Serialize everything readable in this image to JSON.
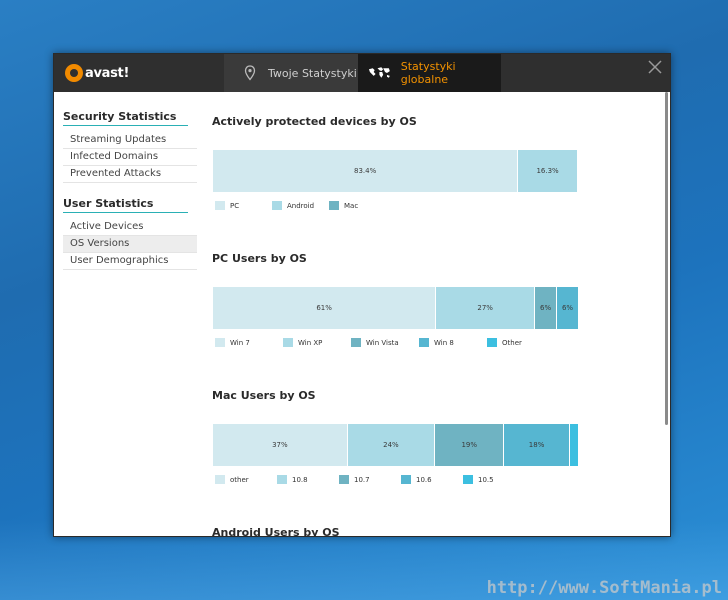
{
  "app": {
    "logo_text": "avast!",
    "tabs": [
      {
        "label": "Twoje Statystyki",
        "icon": "pin-icon"
      },
      {
        "label": "Statystyki globalne",
        "icon": "globe-icon"
      }
    ],
    "accent": "#f39200"
  },
  "sidebar": {
    "sections": [
      {
        "title": "Security Statistics",
        "items": [
          "Streaming Updates",
          "Infected Domains",
          "Prevented Attacks"
        ]
      },
      {
        "title": "User Statistics",
        "items": [
          "Active Devices",
          "OS Versions",
          "User Demographics"
        ]
      }
    ],
    "active_item": "OS Versions"
  },
  "charts": [
    {
      "title": "Actively protected devices by OS",
      "segments": [
        {
          "label": "PC",
          "value": 83.4,
          "text": "83.4%",
          "color": "#d2e9ef"
        },
        {
          "label": "Android",
          "value": 16.3,
          "text": "16.3%",
          "color": "#a9dae6"
        },
        {
          "label": "Mac",
          "value": 0.3,
          "text": "",
          "color": "#6fb3c2"
        }
      ]
    },
    {
      "title": "PC Users by OS",
      "segments": [
        {
          "label": "Win 7",
          "value": 61,
          "text": "61%",
          "color": "#d2e9ef"
        },
        {
          "label": "Win XP",
          "value": 27,
          "text": "27%",
          "color": "#a9dae6"
        },
        {
          "label": "Win Vista",
          "value": 6,
          "text": "6%",
          "color": "#6fb3c2"
        },
        {
          "label": "Win 8",
          "value": 6,
          "text": "6%",
          "color": "#56b6d1"
        },
        {
          "label": "Other",
          "value": 0,
          "text": "",
          "color": "#3cbfe0"
        }
      ]
    },
    {
      "title": "Mac Users by OS",
      "segments": [
        {
          "label": "other",
          "value": 37,
          "text": "37%",
          "color": "#d2e9ef"
        },
        {
          "label": "10.8",
          "value": 24,
          "text": "24%",
          "color": "#a9dae6"
        },
        {
          "label": "10.7",
          "value": 19,
          "text": "19%",
          "color": "#6fb3c2"
        },
        {
          "label": "10.6",
          "value": 18,
          "text": "18%",
          "color": "#56b6d1"
        },
        {
          "label": "10.5",
          "value": 2.5,
          "text": "",
          "color": "#3cbfe0"
        }
      ]
    },
    {
      "title": "Android Users by OS",
      "segments": []
    }
  ],
  "watermark": "http://www.SoftMania.pl"
}
